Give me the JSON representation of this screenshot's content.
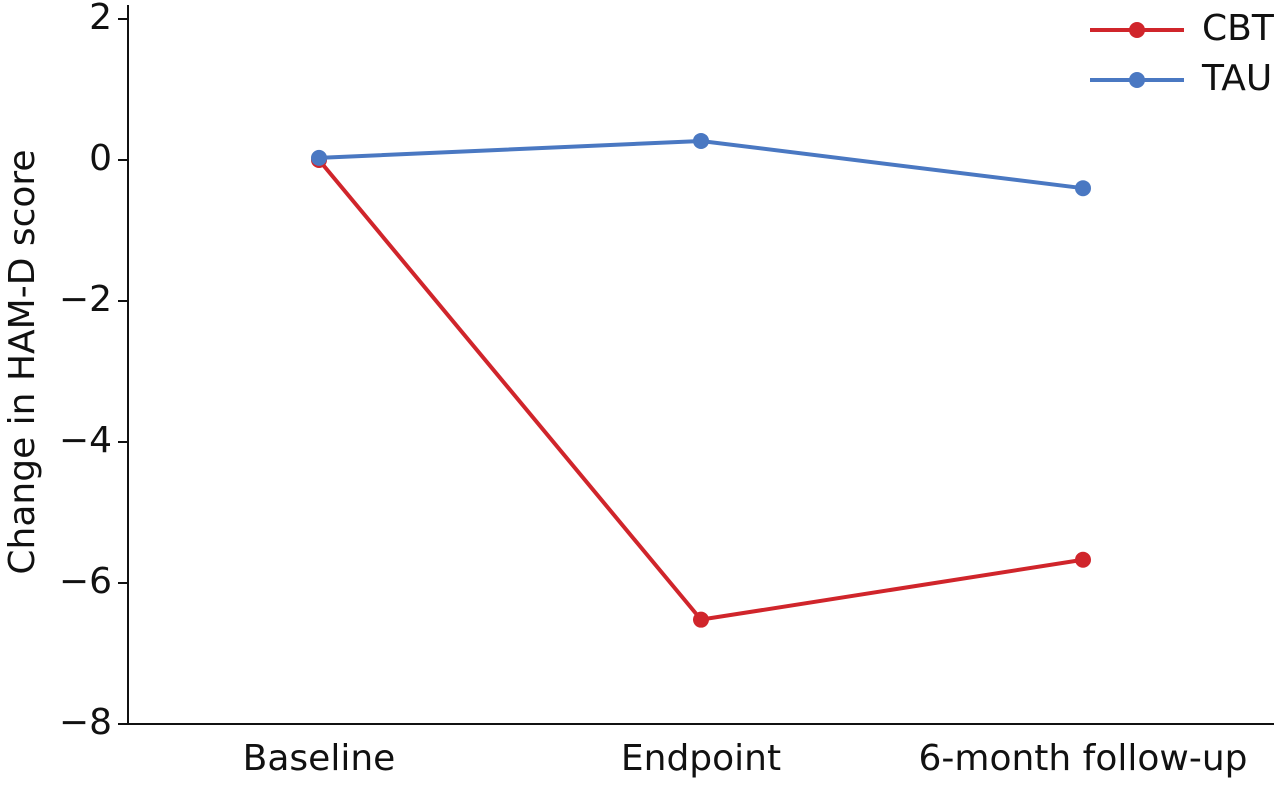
{
  "chart_data": {
    "type": "line",
    "ylabel": "Change in HAM-D score",
    "categories": [
      "Baseline",
      "Endpoint",
      "6-month follow-up"
    ],
    "series": [
      {
        "name": "CBT",
        "color": "#d0252b",
        "values": [
          0,
          -6.52,
          -5.67
        ]
      },
      {
        "name": "TAU",
        "color": "#4a78c2",
        "values": [
          0.03,
          0.27,
          -0.4
        ]
      }
    ],
    "ylim": [
      -8,
      2
    ],
    "yticks": [
      {
        "value": -8,
        "label": "−8"
      },
      {
        "value": -6,
        "label": "−6"
      },
      {
        "value": -4,
        "label": "−4"
      },
      {
        "value": -2,
        "label": "−2"
      },
      0,
      2
    ],
    "legend": "top-right"
  }
}
